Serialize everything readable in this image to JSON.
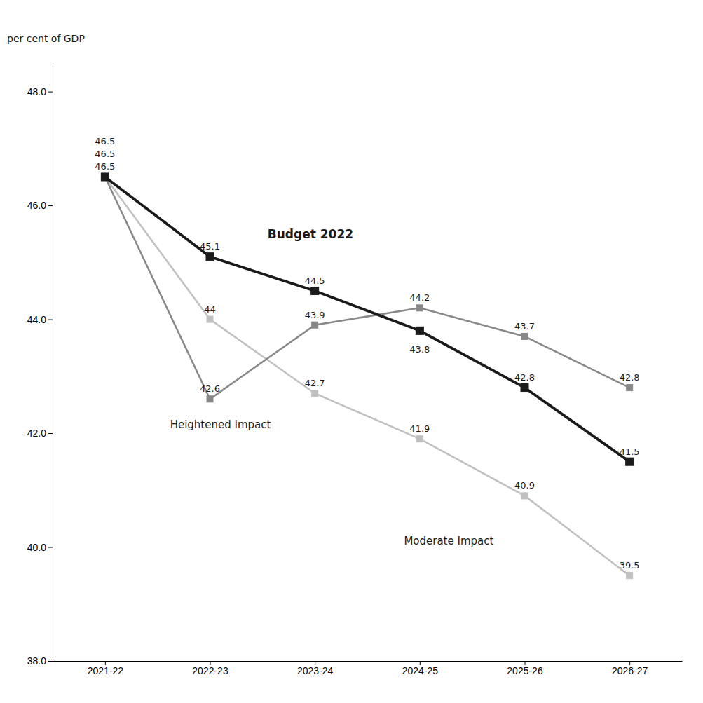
{
  "chart_data": {
    "type": "line",
    "categories": [
      "2021-22",
      "2022-23",
      "2023-24",
      "2024-25",
      "2025-26",
      "2026-27"
    ],
    "series": [
      {
        "name": "Budget 2022",
        "color": "#1a1a1a",
        "marker": "square",
        "values": [
          46.5,
          45.1,
          44.5,
          43.8,
          42.8,
          41.5
        ]
      },
      {
        "name": "Heightened Impact",
        "color": "#888888",
        "marker": "square",
        "values": [
          46.5,
          42.6,
          43.9,
          44.2,
          43.7,
          42.8
        ]
      },
      {
        "name": "Moderate Impact",
        "color": "#c0c0c0",
        "marker": "square",
        "values": [
          46.5,
          44.0,
          42.7,
          41.9,
          40.9,
          39.5
        ]
      }
    ],
    "y_label": "per cent of GDP",
    "ylim": [
      38.0,
      48.5
    ],
    "yticks": [
      {
        "value": 38.0,
        "label": "38.0"
      },
      {
        "value": 40.0,
        "label": "40.0"
      },
      {
        "value": 42.0,
        "label": "42.0"
      },
      {
        "value": 44.0,
        "label": "44.0"
      },
      {
        "value": 46.0,
        "label": "46.0"
      },
      {
        "value": 48.0,
        "label": "48.0"
      }
    ],
    "grid": false,
    "data_labels": true
  }
}
